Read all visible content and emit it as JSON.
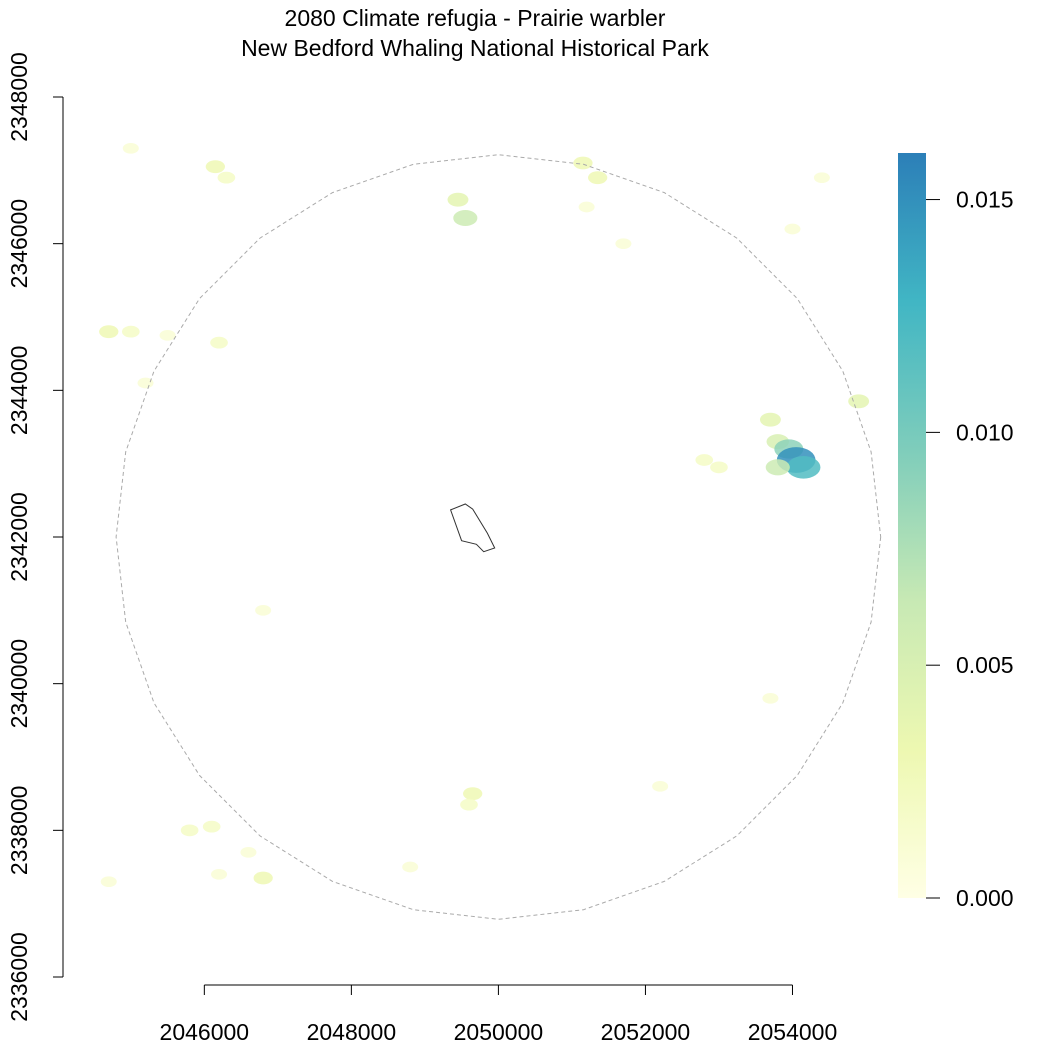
{
  "chart_data": {
    "type": "heatmap",
    "title": "2080 Climate refugia - Prairie warbler",
    "subtitle": "New Bedford Whaling National Historical Park",
    "xlabel": "",
    "ylabel": "",
    "x_ticks": [
      2046000,
      2048000,
      2050000,
      2052000,
      2054000
    ],
    "y_ticks": [
      2336000,
      2338000,
      2340000,
      2342000,
      2344000,
      2346000,
      2348000
    ],
    "x_tick_labels": [
      "2046000",
      "2048000",
      "2050000",
      "2052000",
      "2054000"
    ],
    "y_tick_labels": [
      "2336000",
      "2338000",
      "2340000",
      "2342000",
      "2344000",
      "2346000",
      "2348000"
    ],
    "xlim": [
      2044200,
      2055000
    ],
    "ylim": [
      2336000,
      2348000
    ],
    "legend": {
      "placement": "right",
      "range": [
        0,
        0.016
      ],
      "ticks": [
        0,
        0.005,
        0.01,
        0.015
      ],
      "tick_labels": [
        "0.000",
        "0.005",
        "0.010",
        "0.015"
      ],
      "colors": [
        "#ffffe5",
        "#edf8b1",
        "#c7e9b4",
        "#7fcdbb",
        "#41b6c4",
        "#2c7fb8"
      ]
    },
    "buffer_circle": {
      "center": [
        2050000,
        2342000
      ],
      "radius": 5200,
      "style": "dashed",
      "color": "#aaaaaa"
    },
    "park_boundary": {
      "points": [
        [
          2049350,
          2342370
        ],
        [
          2049550,
          2342450
        ],
        [
          2049650,
          2342380
        ],
        [
          2049850,
          2342050
        ],
        [
          2049950,
          2341850
        ],
        [
          2049800,
          2341800
        ],
        [
          2049700,
          2341900
        ],
        [
          2049500,
          2341950
        ]
      ],
      "color": "#333333"
    },
    "patches": [
      {
        "x": 2046150,
        "y": 2347050,
        "value": 0.003
      },
      {
        "x": 2046300,
        "y": 2346900,
        "value": 0.002
      },
      {
        "x": 2045000,
        "y": 2347300,
        "value": 0.001
      },
      {
        "x": 2049450,
        "y": 2346600,
        "value": 0.004
      },
      {
        "x": 2049550,
        "y": 2346350,
        "value": 0.006
      },
      {
        "x": 2051150,
        "y": 2347100,
        "value": 0.003
      },
      {
        "x": 2051350,
        "y": 2346900,
        "value": 0.003
      },
      {
        "x": 2051200,
        "y": 2346500,
        "value": 0.001
      },
      {
        "x": 2051700,
        "y": 2346000,
        "value": 0.001
      },
      {
        "x": 2054400,
        "y": 2346900,
        "value": 0.001
      },
      {
        "x": 2054000,
        "y": 2346200,
        "value": 0.001
      },
      {
        "x": 2044700,
        "y": 2344800,
        "value": 0.003
      },
      {
        "x": 2045000,
        "y": 2344800,
        "value": 0.002
      },
      {
        "x": 2046200,
        "y": 2344650,
        "value": 0.002
      },
      {
        "x": 2045500,
        "y": 2344750,
        "value": 0.001
      },
      {
        "x": 2045200,
        "y": 2344100,
        "value": 0.001
      },
      {
        "x": 2053700,
        "y": 2343600,
        "value": 0.004
      },
      {
        "x": 2053800,
        "y": 2343300,
        "value": 0.005
      },
      {
        "x": 2053950,
        "y": 2343200,
        "value": 0.009
      },
      {
        "x": 2054050,
        "y": 2343050,
        "value": 0.015
      },
      {
        "x": 2054150,
        "y": 2342950,
        "value": 0.012
      },
      {
        "x": 2053800,
        "y": 2342950,
        "value": 0.006
      },
      {
        "x": 2052800,
        "y": 2343050,
        "value": 0.002
      },
      {
        "x": 2053000,
        "y": 2342950,
        "value": 0.002
      },
      {
        "x": 2054900,
        "y": 2343850,
        "value": 0.004
      },
      {
        "x": 2049650,
        "y": 2338500,
        "value": 0.003
      },
      {
        "x": 2049600,
        "y": 2338350,
        "value": 0.002
      },
      {
        "x": 2045800,
        "y": 2338000,
        "value": 0.002
      },
      {
        "x": 2046100,
        "y": 2338050,
        "value": 0.002
      },
      {
        "x": 2046800,
        "y": 2337350,
        "value": 0.003
      },
      {
        "x": 2046600,
        "y": 2337700,
        "value": 0.001
      },
      {
        "x": 2044700,
        "y": 2337300,
        "value": 0.001
      },
      {
        "x": 2046200,
        "y": 2337400,
        "value": 0.001
      },
      {
        "x": 2048800,
        "y": 2337500,
        "value": 0.001
      },
      {
        "x": 2046800,
        "y": 2341000,
        "value": 0.001
      },
      {
        "x": 2053700,
        "y": 2339800,
        "value": 0.001
      },
      {
        "x": 2052200,
        "y": 2338600,
        "value": 0.001
      }
    ]
  }
}
